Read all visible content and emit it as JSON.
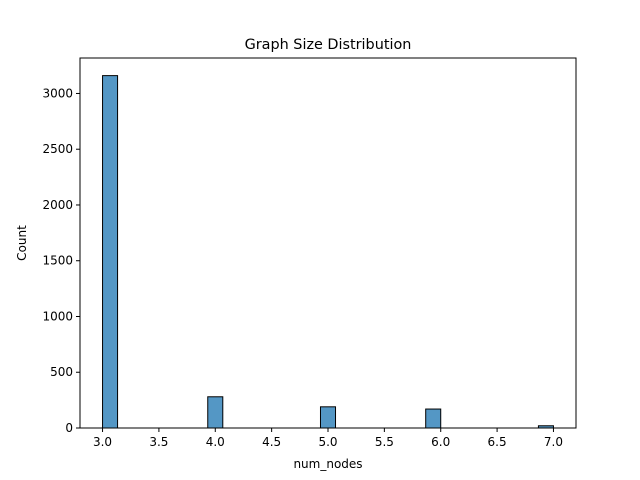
{
  "chart_data": {
    "type": "bar",
    "title": "Graph Size Distribution",
    "xlabel": "num_nodes",
    "ylabel": "Count",
    "bars": [
      {
        "x_start": 3.0,
        "x_end": 3.1333,
        "count": 3160
      },
      {
        "x_start": 3.9333,
        "x_end": 4.0667,
        "count": 280
      },
      {
        "x_start": 4.9333,
        "x_end": 5.0667,
        "count": 190
      },
      {
        "x_start": 5.8667,
        "x_end": 6.0,
        "count": 170
      },
      {
        "x_start": 6.8667,
        "x_end": 7.0,
        "count": 20
      }
    ],
    "xlim": [
      2.8,
      7.2
    ],
    "ylim": [
      0,
      3318
    ],
    "x_ticks": [
      3.0,
      3.5,
      4.0,
      4.5,
      5.0,
      5.5,
      6.0,
      6.5,
      7.0
    ],
    "x_tick_labels": [
      "3.0",
      "3.5",
      "4.0",
      "4.5",
      "5.0",
      "5.5",
      "6.0",
      "6.5",
      "7.0"
    ],
    "y_ticks": [
      0,
      500,
      1000,
      1500,
      2000,
      2500,
      3000
    ],
    "y_tick_labels": [
      "0",
      "500",
      "1000",
      "1500",
      "2000",
      "2500",
      "3000"
    ],
    "bar_color": "#5497c5",
    "edge_color": "#000000",
    "grid": false,
    "legend": "none"
  }
}
